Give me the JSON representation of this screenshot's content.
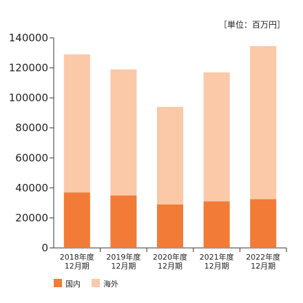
{
  "chart_data": {
    "type": "bar",
    "stacked": true,
    "unit_label": "［単位：百万円］",
    "categories": [
      [
        "2018年度",
        "12月期"
      ],
      [
        "2019年度",
        "12月期"
      ],
      [
        "2020年度",
        "12月期"
      ],
      [
        "2021年度",
        "12月期"
      ],
      [
        "2022年度",
        "12月期"
      ]
    ],
    "series": [
      {
        "name": "国内",
        "color": "#f17b37",
        "values": [
          37000,
          35000,
          29000,
          31000,
          32500
        ]
      },
      {
        "name": "海外",
        "color": "#fbc8a8",
        "values": [
          92000,
          84000,
          65000,
          86000,
          102000
        ]
      }
    ],
    "ylim": [
      0,
      140000
    ],
    "yticks": [
      0,
      20000,
      40000,
      60000,
      80000,
      100000,
      120000,
      140000
    ],
    "grid": false,
    "legend_position": "bottom-left"
  }
}
